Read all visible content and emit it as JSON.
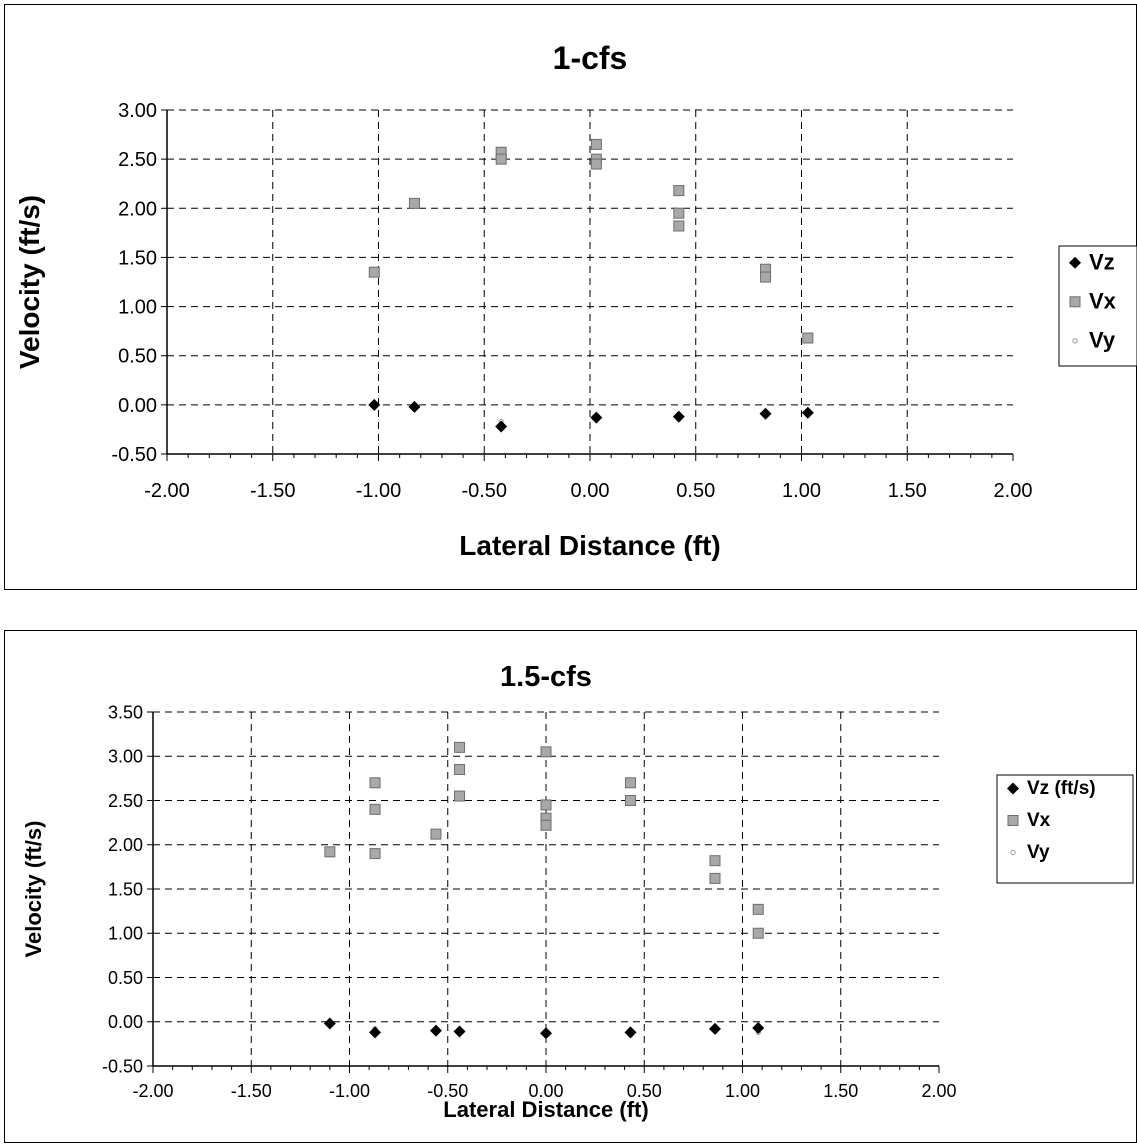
{
  "chart_data": [
    {
      "type": "scatter",
      "title": "1-cfs",
      "xlabel": "Lateral Distance (ft)",
      "ylabel": "Velocity (ft/s)",
      "xlim": [
        -2.0,
        2.0
      ],
      "ylim": [
        -0.5,
        3.0
      ],
      "x_ticks": [
        "-2.00",
        "-1.50",
        "-1.00",
        "-0.50",
        "0.00",
        "0.50",
        "1.00",
        "1.50",
        "2.00"
      ],
      "y_ticks": [
        "3.00",
        "2.50",
        "2.00",
        "1.50",
        "1.00",
        "0.50",
        "0.00",
        "-0.50"
      ],
      "grid": true,
      "legend_position": "right",
      "series": [
        {
          "name": "Vz",
          "marker": "diamond",
          "color": "#000000",
          "x": [
            -1.02,
            -0.83,
            -0.42,
            0.03,
            0.42,
            0.83,
            1.03
          ],
          "y": [
            0.0,
            -0.02,
            -0.22,
            -0.13,
            -0.12,
            -0.09,
            -0.08
          ]
        },
        {
          "name": "Vx",
          "marker": "square",
          "color": "#8c8c8c",
          "x": [
            -1.02,
            -0.83,
            -0.42,
            -0.42,
            0.03,
            0.03,
            0.03,
            0.42,
            0.42,
            0.42,
            0.83,
            0.83,
            1.03
          ],
          "y": [
            1.35,
            2.05,
            2.57,
            2.5,
            2.65,
            2.5,
            2.45,
            2.18,
            1.95,
            1.82,
            1.38,
            1.3,
            0.68
          ]
        },
        {
          "name": "Vy",
          "marker": "small-dot",
          "color": "#bdbdbd",
          "x": [
            -1.02,
            -0.83,
            -0.42,
            0.03,
            0.42,
            0.83,
            1.03
          ],
          "y": [
            -0.01,
            -0.01,
            -0.17,
            -0.15,
            -0.1,
            -0.07,
            -0.09
          ]
        }
      ]
    },
    {
      "type": "scatter",
      "title": "1.5-cfs",
      "xlabel": "Lateral Distance (ft)",
      "ylabel": "Velocity (ft/s)",
      "xlim": [
        -2.0,
        2.0
      ],
      "ylim": [
        -0.5,
        3.5
      ],
      "x_ticks": [
        "-2.00",
        "-1.50",
        "-1.00",
        "-0.50",
        "0.00",
        "0.50",
        "1.00",
        "1.50",
        "2.00"
      ],
      "y_ticks": [
        "3.50",
        "3.00",
        "2.50",
        "2.00",
        "1.50",
        "1.00",
        "0.50",
        "0.00",
        "-0.50"
      ],
      "grid": true,
      "legend_position": "right",
      "series": [
        {
          "name": "Vz (ft/s)",
          "marker": "diamond",
          "color": "#000000",
          "x": [
            -1.1,
            -0.87,
            -0.56,
            -0.44,
            0.0,
            0.43,
            0.86,
            1.08
          ],
          "y": [
            -0.02,
            -0.12,
            -0.1,
            -0.11,
            -0.13,
            -0.12,
            -0.08,
            -0.07
          ]
        },
        {
          "name": "Vx",
          "marker": "square",
          "color": "#8c8c8c",
          "x": [
            -1.1,
            -0.87,
            -0.87,
            -0.87,
            -0.56,
            -0.44,
            -0.44,
            -0.44,
            0.0,
            0.0,
            0.0,
            0.0,
            0.43,
            0.43,
            0.86,
            0.86,
            1.08,
            1.08
          ],
          "y": [
            1.92,
            2.7,
            2.4,
            1.9,
            2.12,
            3.1,
            2.85,
            2.55,
            3.05,
            2.45,
            2.3,
            2.22,
            2.7,
            2.5,
            1.82,
            1.62,
            1.27,
            1.0
          ]
        },
        {
          "name": "Vy",
          "marker": "small-dot",
          "color": "#bdbdbd",
          "x": [
            -1.1,
            -0.87,
            -0.56,
            -0.44,
            0.0,
            0.43,
            0.86,
            1.08
          ],
          "y": [
            -0.01,
            -0.08,
            -0.1,
            -0.1,
            -0.12,
            -0.15,
            -0.06,
            -0.12
          ]
        }
      ]
    }
  ]
}
